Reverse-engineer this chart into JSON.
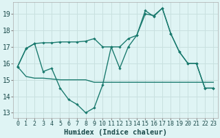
{
  "x": [
    0,
    1,
    2,
    3,
    4,
    5,
    6,
    7,
    8,
    9,
    10,
    11,
    12,
    13,
    14,
    15,
    16,
    17,
    18,
    19,
    20,
    21,
    22,
    23
  ],
  "line1": [
    15.8,
    16.9,
    17.2,
    17.25,
    17.25,
    17.3,
    17.3,
    17.3,
    17.35,
    17.5,
    17.0,
    17.0,
    17.0,
    17.5,
    17.7,
    19.0,
    18.9,
    19.35,
    17.8,
    16.7,
    16.0,
    16.0,
    14.5,
    14.5
  ],
  "line2": [
    15.8,
    16.9,
    17.2,
    15.5,
    15.7,
    14.5,
    13.8,
    13.5,
    13.0,
    13.3,
    14.7,
    17.0,
    15.7,
    17.0,
    17.7,
    19.2,
    18.85,
    19.35,
    17.8,
    16.7,
    16.0,
    16.0,
    14.5,
    14.5
  ],
  "line3": [
    15.8,
    15.2,
    15.1,
    15.1,
    15.05,
    15.0,
    15.0,
    15.0,
    15.0,
    14.85,
    14.85,
    14.85,
    14.85,
    14.85,
    14.85,
    14.85,
    14.85,
    14.85,
    14.85,
    14.85,
    14.85,
    14.85,
    14.85,
    14.85
  ],
  "color": "#1a7a6e",
  "bg_color": "#dff4f4",
  "grid_color": "#c8e0df",
  "xlabel": "Humidex (Indice chaleur)",
  "ylabel_ticks": [
    13,
    14,
    15,
    16,
    17,
    18,
    19
  ],
  "xlim": [
    -0.5,
    23.5
  ],
  "ylim": [
    12.7,
    19.7
  ],
  "xlabel_fontsize": 7.5,
  "tick_fontsize": 7
}
